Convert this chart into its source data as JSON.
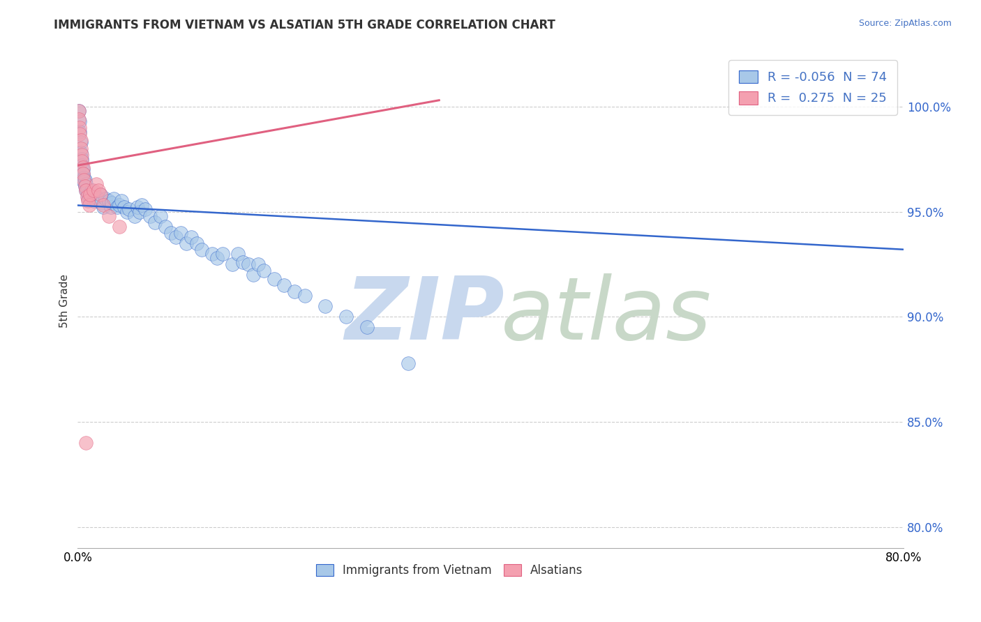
{
  "title": "IMMIGRANTS FROM VIETNAM VS ALSATIAN 5TH GRADE CORRELATION CHART",
  "source_text": "Source: ZipAtlas.com",
  "ylabel": "5th Grade",
  "xlim": [
    0.0,
    0.8
  ],
  "ylim": [
    0.79,
    1.025
  ],
  "ytick_vals": [
    0.8,
    0.85,
    0.9,
    0.95,
    1.0
  ],
  "xtick_positions": [
    0.0,
    0.8
  ],
  "xtick_labels": [
    "0.0%",
    "80.0%"
  ],
  "legend_color1": "#A8C8E8",
  "legend_color2": "#F4A0B0",
  "trendline1_color": "#3366CC",
  "trendline2_color": "#E06080",
  "grid_color": "#CCCCCC",
  "watermark_zip_color": "#C8D8EE",
  "watermark_atlas_color": "#C8D8C8",
  "blue_trendline_x": [
    0.0,
    0.8
  ],
  "blue_trendline_y": [
    0.953,
    0.932
  ],
  "pink_trendline_x": [
    0.0,
    0.35
  ],
  "pink_trendline_y": [
    0.972,
    1.003
  ],
  "blue_dots": [
    [
      0.001,
      0.998
    ],
    [
      0.002,
      0.993
    ],
    [
      0.002,
      0.988
    ],
    [
      0.003,
      0.983
    ],
    [
      0.003,
      0.978
    ],
    [
      0.004,
      0.975
    ],
    [
      0.004,
      0.972
    ],
    [
      0.005,
      0.97
    ],
    [
      0.005,
      0.968
    ],
    [
      0.006,
      0.966
    ],
    [
      0.006,
      0.964
    ],
    [
      0.007,
      0.962
    ],
    [
      0.007,
      0.965
    ],
    [
      0.008,
      0.96
    ],
    [
      0.008,
      0.963
    ],
    [
      0.009,
      0.96
    ],
    [
      0.01,
      0.958
    ],
    [
      0.01,
      0.956
    ],
    [
      0.011,
      0.957
    ],
    [
      0.012,
      0.958
    ],
    [
      0.013,
      0.96
    ],
    [
      0.014,
      0.957
    ],
    [
      0.015,
      0.955
    ],
    [
      0.016,
      0.956
    ],
    [
      0.018,
      0.957
    ],
    [
      0.02,
      0.956
    ],
    [
      0.022,
      0.958
    ],
    [
      0.023,
      0.954
    ],
    [
      0.025,
      0.952
    ],
    [
      0.027,
      0.956
    ],
    [
      0.03,
      0.955
    ],
    [
      0.032,
      0.952
    ],
    [
      0.033,
      0.954
    ],
    [
      0.035,
      0.956
    ],
    [
      0.038,
      0.952
    ],
    [
      0.04,
      0.953
    ],
    [
      0.042,
      0.955
    ],
    [
      0.045,
      0.952
    ],
    [
      0.048,
      0.95
    ],
    [
      0.05,
      0.951
    ],
    [
      0.055,
      0.948
    ],
    [
      0.058,
      0.952
    ],
    [
      0.06,
      0.95
    ],
    [
      0.062,
      0.953
    ],
    [
      0.065,
      0.951
    ],
    [
      0.07,
      0.948
    ],
    [
      0.075,
      0.945
    ],
    [
      0.08,
      0.948
    ],
    [
      0.085,
      0.943
    ],
    [
      0.09,
      0.94
    ],
    [
      0.095,
      0.938
    ],
    [
      0.1,
      0.94
    ],
    [
      0.105,
      0.935
    ],
    [
      0.11,
      0.938
    ],
    [
      0.115,
      0.935
    ],
    [
      0.12,
      0.932
    ],
    [
      0.13,
      0.93
    ],
    [
      0.135,
      0.928
    ],
    [
      0.14,
      0.93
    ],
    [
      0.15,
      0.925
    ],
    [
      0.155,
      0.93
    ],
    [
      0.16,
      0.926
    ],
    [
      0.165,
      0.925
    ],
    [
      0.17,
      0.92
    ],
    [
      0.175,
      0.925
    ],
    [
      0.18,
      0.922
    ],
    [
      0.19,
      0.918
    ],
    [
      0.2,
      0.915
    ],
    [
      0.21,
      0.912
    ],
    [
      0.22,
      0.91
    ],
    [
      0.24,
      0.905
    ],
    [
      0.26,
      0.9
    ],
    [
      0.28,
      0.895
    ],
    [
      0.32,
      0.878
    ]
  ],
  "pink_dots": [
    [
      0.001,
      0.998
    ],
    [
      0.001,
      0.994
    ],
    [
      0.002,
      0.99
    ],
    [
      0.002,
      0.987
    ],
    [
      0.003,
      0.984
    ],
    [
      0.003,
      0.98
    ],
    [
      0.004,
      0.977
    ],
    [
      0.004,
      0.974
    ],
    [
      0.005,
      0.971
    ],
    [
      0.005,
      0.968
    ],
    [
      0.006,
      0.965
    ],
    [
      0.007,
      0.962
    ],
    [
      0.008,
      0.96
    ],
    [
      0.009,
      0.957
    ],
    [
      0.01,
      0.955
    ],
    [
      0.011,
      0.953
    ],
    [
      0.012,
      0.958
    ],
    [
      0.015,
      0.96
    ],
    [
      0.018,
      0.963
    ],
    [
      0.02,
      0.96
    ],
    [
      0.022,
      0.958
    ],
    [
      0.025,
      0.953
    ],
    [
      0.03,
      0.948
    ],
    [
      0.04,
      0.943
    ],
    [
      0.008,
      0.84
    ]
  ]
}
